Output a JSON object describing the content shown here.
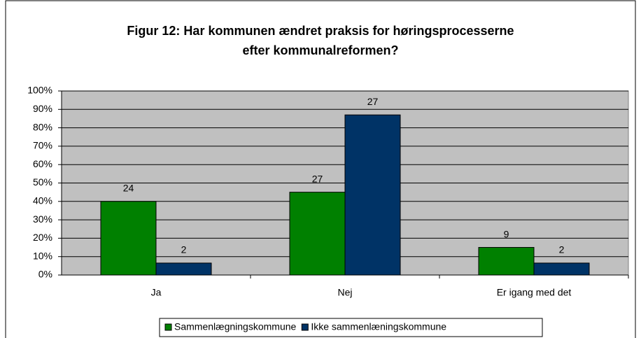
{
  "chart_data": {
    "type": "bar",
    "title": [
      "Figur 12: Har kommunen ændret praksis for høringsprocesserne",
      "efter kommunalreformen?"
    ],
    "categories": [
      "Ja",
      "Nej",
      "Er igang med det"
    ],
    "series": [
      {
        "name": "Sammenlægningskommune",
        "color": "#008000",
        "values": [
          40,
          45,
          15
        ],
        "value_labels": [
          "24",
          "27",
          "9"
        ]
      },
      {
        "name": "Ikke sammenlæningskommune",
        "color": "#003366",
        "values": [
          6.5,
          87,
          6.5
        ],
        "value_labels": [
          "2",
          "27",
          "2"
        ]
      }
    ],
    "ylim": [
      0,
      100
    ],
    "yticks": [
      {
        "value": 0,
        "label": "0%"
      },
      {
        "value": 10,
        "label": "10%"
      },
      {
        "value": 20,
        "label": "20%"
      },
      {
        "value": 30,
        "label": "30%"
      },
      {
        "value": 40,
        "label": "40%"
      },
      {
        "value": 50,
        "label": "50%"
      },
      {
        "value": 60,
        "label": "60%"
      },
      {
        "value": 70,
        "label": "70%"
      },
      {
        "value": 80,
        "label": "80%"
      },
      {
        "value": 90,
        "label": "90%"
      },
      {
        "value": 100,
        "label": "100%"
      }
    ],
    "grid": true,
    "legend": "bottom",
    "plot_background": "#c0c0c0"
  }
}
